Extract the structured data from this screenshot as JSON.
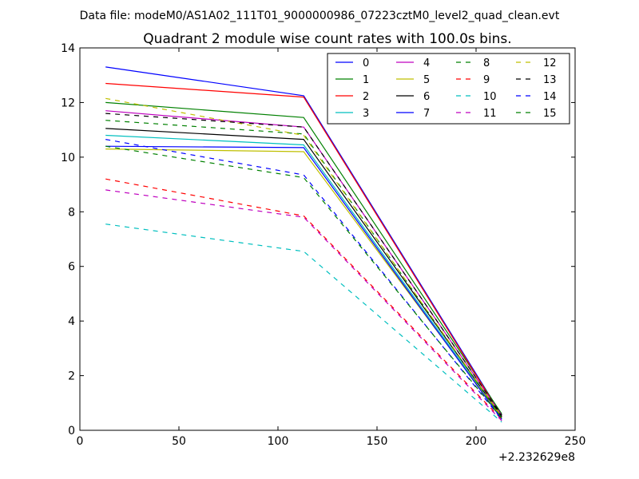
{
  "chart_data": {
    "type": "line",
    "suptitle": "Data file: modeM0/AS1A02_111T01_9000000986_07223cztM0_level2_quad_clean.evt",
    "title": "Quadrant 2 module wise count rates with 100.0s bins.",
    "xlabel": "",
    "ylabel": "",
    "x_offset_label": "+2.232629e8",
    "xlim": [
      0,
      250
    ],
    "ylim": [
      0,
      14
    ],
    "xticks": [
      0,
      50,
      100,
      150,
      200,
      250
    ],
    "xtick_labels": [
      "0",
      "50",
      "100",
      "150",
      "200",
      "250"
    ],
    "yticks": [
      0,
      2,
      4,
      6,
      8,
      10,
      12,
      14
    ],
    "ytick_labels": [
      "0",
      "2",
      "4",
      "6",
      "8",
      "10",
      "12",
      "14"
    ],
    "grid": false,
    "legend_position": "top-right",
    "x": [
      13,
      113,
      213
    ],
    "series": [
      {
        "name": "0",
        "values": [
          13.3,
          12.25,
          0.55
        ],
        "color": "#0000ff",
        "dash": "solid"
      },
      {
        "name": "1",
        "values": [
          12.0,
          11.45,
          0.6
        ],
        "color": "#008000",
        "dash": "solid"
      },
      {
        "name": "2",
        "values": [
          12.7,
          12.2,
          0.5
        ],
        "color": "#ff0000",
        "dash": "solid"
      },
      {
        "name": "3",
        "values": [
          10.8,
          10.45,
          0.45
        ],
        "color": "#00bfbf",
        "dash": "solid"
      },
      {
        "name": "4",
        "values": [
          11.7,
          11.1,
          0.55
        ],
        "color": "#bf00bf",
        "dash": "solid"
      },
      {
        "name": "5",
        "values": [
          10.3,
          10.2,
          0.45
        ],
        "color": "#bfbf00",
        "dash": "solid"
      },
      {
        "name": "6",
        "values": [
          11.05,
          10.65,
          0.5
        ],
        "color": "#000000",
        "dash": "solid"
      },
      {
        "name": "7",
        "values": [
          10.4,
          10.35,
          0.4
        ],
        "color": "#0000ff",
        "dash": "solid"
      },
      {
        "name": "8",
        "values": [
          11.35,
          10.85,
          0.45
        ],
        "color": "#008000",
        "dash": "dashed"
      },
      {
        "name": "9",
        "values": [
          9.2,
          7.85,
          0.4
        ],
        "color": "#ff0000",
        "dash": "dashed"
      },
      {
        "name": "10",
        "values": [
          7.55,
          6.55,
          0.3
        ],
        "color": "#00bfbf",
        "dash": "dashed"
      },
      {
        "name": "11",
        "values": [
          8.8,
          7.8,
          0.35
        ],
        "color": "#bf00bf",
        "dash": "dashed"
      },
      {
        "name": "12",
        "values": [
          12.15,
          10.8,
          0.5
        ],
        "color": "#bfbf00",
        "dash": "dashed"
      },
      {
        "name": "13",
        "values": [
          11.6,
          11.1,
          0.55
        ],
        "color": "#000000",
        "dash": "dashed"
      },
      {
        "name": "14",
        "values": [
          10.65,
          9.35,
          0.4
        ],
        "color": "#0000ff",
        "dash": "dashed"
      },
      {
        "name": "15",
        "values": [
          10.4,
          9.25,
          0.45
        ],
        "color": "#008000",
        "dash": "dashed"
      }
    ]
  }
}
